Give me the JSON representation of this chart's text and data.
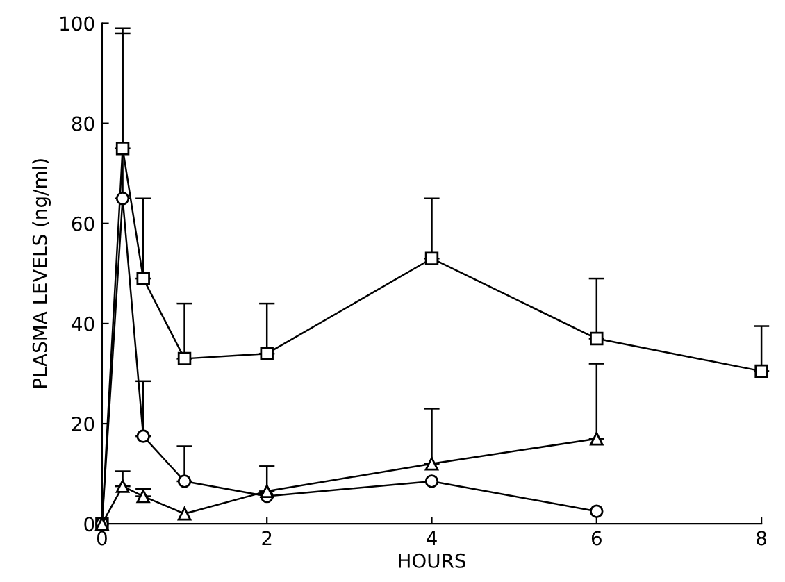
{
  "chart_data": {
    "type": "line",
    "xlabel": "HOURS",
    "ylabel": "PLASMA LEVELS (ng/ml)",
    "xlim": [
      0,
      8
    ],
    "xticks": [
      0,
      2,
      4,
      6,
      8
    ],
    "ylim": [
      0,
      100
    ],
    "yticks": [
      0,
      20,
      40,
      60,
      80,
      100
    ],
    "grid": false,
    "legend": false,
    "series": [
      {
        "color": "#000000",
        "marker": "square",
        "x": [
          0,
          0.25,
          0.5,
          1,
          2,
          4,
          6,
          8
        ],
        "values": [
          0,
          75,
          49,
          33,
          34,
          53,
          37,
          30.5
        ],
        "errors": [
          null,
          [
            75,
            99
          ],
          [
            49,
            65
          ],
          [
            33,
            44
          ],
          [
            34,
            44
          ],
          [
            53,
            65
          ],
          [
            37,
            49
          ],
          [
            30.5,
            39.5
          ]
        ]
      },
      {
        "color": "#000000",
        "marker": "circle",
        "x": [
          0,
          0.25,
          0.5,
          1,
          2,
          4,
          6
        ],
        "values": [
          0,
          65,
          17.5,
          8.5,
          5.5,
          8.5,
          2.5
        ],
        "errors": [
          null,
          [
            65,
            98
          ],
          [
            17.5,
            28.5
          ],
          [
            8.5,
            15.5
          ],
          null,
          null,
          null
        ]
      },
      {
        "color": "#000000",
        "marker": "triangle",
        "x": [
          0,
          0.25,
          0.5,
          1,
          2,
          4,
          6
        ],
        "values": [
          0,
          7.5,
          5.5,
          2,
          6.5,
          12,
          17
        ],
        "errors": [
          null,
          [
            7.5,
            10.5
          ],
          [
            5.5,
            7
          ],
          null,
          [
            6.5,
            11.5
          ],
          [
            12,
            23
          ],
          [
            17,
            32
          ]
        ]
      }
    ]
  }
}
